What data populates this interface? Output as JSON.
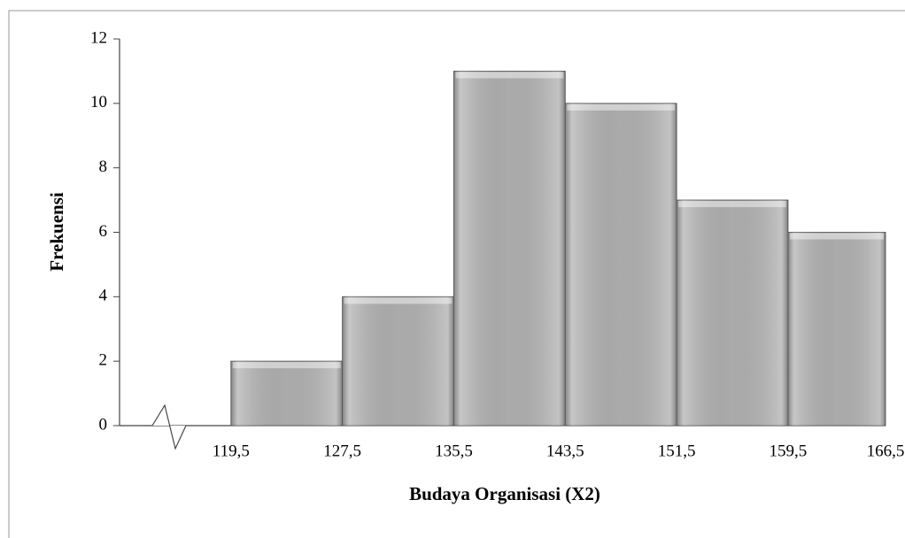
{
  "chart_data": {
    "type": "histogram",
    "xlabel": "Budaya Organisasi (X2)",
    "ylabel": "Frekuensi",
    "bins": [
      119.5,
      127.5,
      135.5,
      143.5,
      151.5,
      159.5,
      166.5
    ],
    "values": [
      2,
      4,
      11,
      10,
      7,
      6
    ],
    "color": "#b4b4b4",
    "xlim": [
      111.5,
      166.5
    ],
    "xticks": [
      {
        "value": 119.5,
        "label": "119,5"
      },
      {
        "value": 127.5,
        "label": "127,5"
      },
      {
        "value": 135.5,
        "label": "135,5"
      },
      {
        "value": 143.5,
        "label": "143,5"
      },
      {
        "value": 151.5,
        "label": "151,5"
      },
      {
        "value": 159.5,
        "label": "159,5"
      },
      {
        "value": 166.5,
        "label": "166,5"
      }
    ],
    "ylim": [
      0,
      12
    ],
    "yticks": [
      0,
      2,
      4,
      6,
      8,
      10,
      12
    ]
  }
}
